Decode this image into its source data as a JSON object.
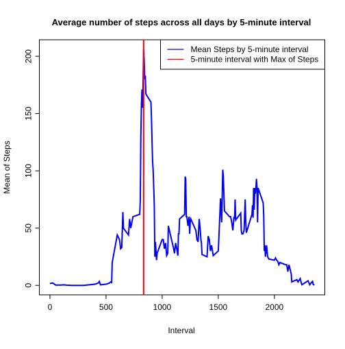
{
  "chart_data": {
    "type": "line",
    "title": "Average number of steps across all days by 5-minute interval",
    "xlabel": "Interval",
    "ylabel": "Mean of Steps",
    "x": [
      0,
      25,
      50,
      100,
      120,
      150,
      200,
      300,
      400,
      430,
      440,
      450,
      500,
      530,
      540,
      550,
      555,
      600,
      620,
      630,
      640,
      650,
      655,
      700,
      710,
      720,
      730,
      740,
      800,
      805,
      810,
      815,
      820,
      825,
      830,
      835,
      840,
      845,
      850,
      855,
      900,
      905,
      910,
      915,
      920,
      930,
      935,
      940,
      945,
      950,
      955,
      1000,
      1010,
      1020,
      1030,
      1040,
      1050,
      1055,
      1100,
      1110,
      1120,
      1130,
      1140,
      1145,
      1150,
      1155,
      1200,
      1205,
      1210,
      1215,
      1220,
      1230,
      1240,
      1245,
      1250,
      1255,
      1300,
      1310,
      1320,
      1330,
      1340,
      1345,
      1350,
      1355,
      1400,
      1410,
      1420,
      1430,
      1440,
      1445,
      1455,
      1500,
      1510,
      1520,
      1530,
      1540,
      1545,
      1550,
      1555,
      1600,
      1610,
      1620,
      1630,
      1640,
      1645,
      1650,
      1655,
      1700,
      1705,
      1710,
      1720,
      1730,
      1740,
      1745,
      1750,
      1800,
      1805,
      1810,
      1815,
      1820,
      1825,
      1830,
      1835,
      1840,
      1845,
      1850,
      1855,
      1900,
      1905,
      1910,
      1915,
      1920,
      1930,
      1940,
      1950,
      2000,
      2010,
      2020,
      2030,
      2040,
      2050,
      2100,
      2110,
      2120,
      2130,
      2140,
      2150,
      2155,
      2200,
      2210,
      2230,
      2240,
      2245,
      2300,
      2315,
      2330,
      2340,
      2345,
      2350,
      2355
    ],
    "series": [
      {
        "name": "Mean Steps by 5-minute interval",
        "color": "#0000ff",
        "values": [
          1.7,
          2.1,
          0.3,
          0.3,
          0.5,
          0.2,
          0,
          0,
          1,
          2,
          3.5,
          0.5,
          1,
          2,
          3,
          2.5,
          20,
          44,
          40,
          32,
          33,
          64,
          50,
          44,
          58,
          50,
          55,
          60,
          62,
          74,
          130,
          157,
          171,
          155,
          177,
          206,
          196,
          180,
          183,
          167,
          160,
          145,
          125,
          108,
          100,
          70,
          25,
          38,
          30,
          22,
          28,
          40,
          40,
          32,
          37,
          26,
          28,
          52,
          33,
          28,
          37,
          32,
          26,
          45,
          45,
          58,
          62,
          95,
          93,
          60,
          60,
          52,
          60,
          45,
          55,
          58,
          48,
          40,
          38,
          58,
          48,
          40,
          37,
          27,
          25,
          43,
          40,
          30,
          35,
          32,
          26,
          30,
          52,
          76,
          55,
          101,
          95,
          80,
          65,
          60,
          60,
          55,
          48,
          60,
          58,
          75,
          57,
          63,
          48,
          45,
          45,
          48,
          75,
          56,
          46,
          62,
          70,
          59,
          85,
          66,
          85,
          80,
          84,
          93,
          86,
          55,
          85,
          72,
          61,
          30,
          35,
          25,
          35,
          25,
          23,
          22,
          24,
          22,
          21,
          18,
          20,
          18,
          18,
          12,
          18,
          14,
          10,
          3,
          5,
          3,
          6,
          2,
          0.5,
          4,
          0.5,
          2.5,
          3.5,
          1,
          0.5,
          1
        ]
      }
    ],
    "vline": {
      "name": "5-minute interval with Max of Steps",
      "color": "#ff0000",
      "x": 835
    },
    "xlim": [
      -94.2,
      2449.2
    ],
    "ylim": [
      -8.25,
      214.4
    ],
    "xticks": [
      0,
      500,
      1000,
      1500,
      2000
    ],
    "yticks": [
      0,
      50,
      100,
      150,
      200
    ],
    "legend": "top-right"
  }
}
